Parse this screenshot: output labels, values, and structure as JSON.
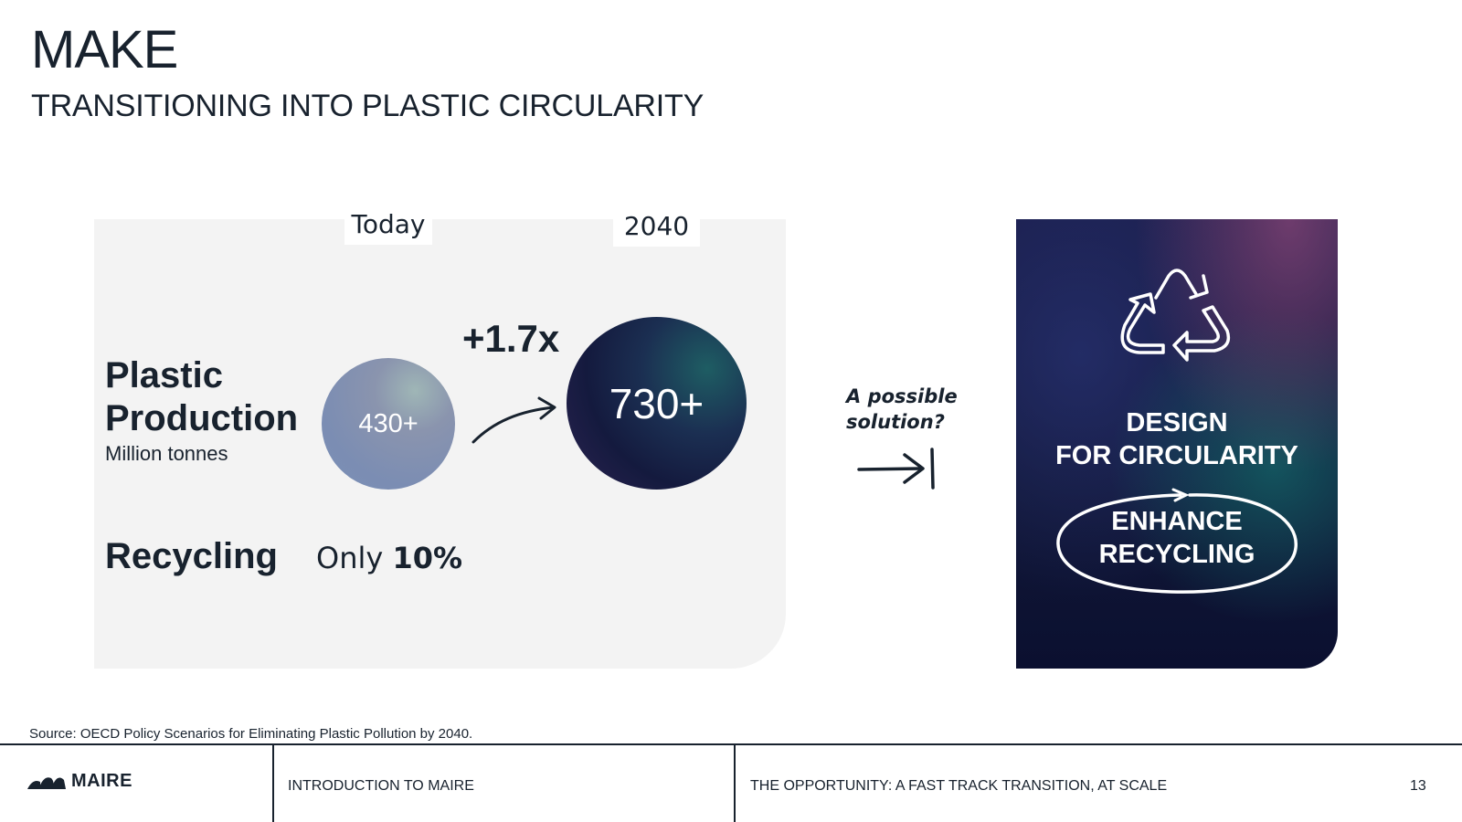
{
  "slide": {
    "title": "MAKE",
    "subtitle": "TRANSITIONING INTO PLASTIC CIRCULARITY"
  },
  "comparison": {
    "col_today": "Today",
    "col_2040": "2040",
    "production_label_line1": "Plastic",
    "production_label_line2": "Production",
    "production_unit": "Million tonnes",
    "today_value": "430+",
    "future_value": "730+",
    "multiplier": "+1.7x",
    "recycling_label": "Recycling",
    "recycling_prefix": "Only",
    "recycling_value": "10%"
  },
  "annotation": {
    "line1": "A possible",
    "line2": "solution?"
  },
  "solution_card": {
    "icon": "recycle-icon",
    "design_line1": "DESIGN",
    "design_line2": "FOR CIRCULARITY",
    "enhance_line1": "ENHANCE",
    "enhance_line2": "RECYCLING"
  },
  "source": "Source: OECD Policy Scenarios for Eliminating Plastic Pollution by 2040.",
  "footer": {
    "logo_text": "MAIRE",
    "section": "INTRODUCTION TO MAIRE",
    "chapter": "THE OPPORTUNITY: A FAST TRACK TRANSITION, AT SCALE",
    "page_number": "13"
  },
  "colors": {
    "ink": "#18222e",
    "panel": "#f3f3f3",
    "card_dark": "#111737"
  }
}
